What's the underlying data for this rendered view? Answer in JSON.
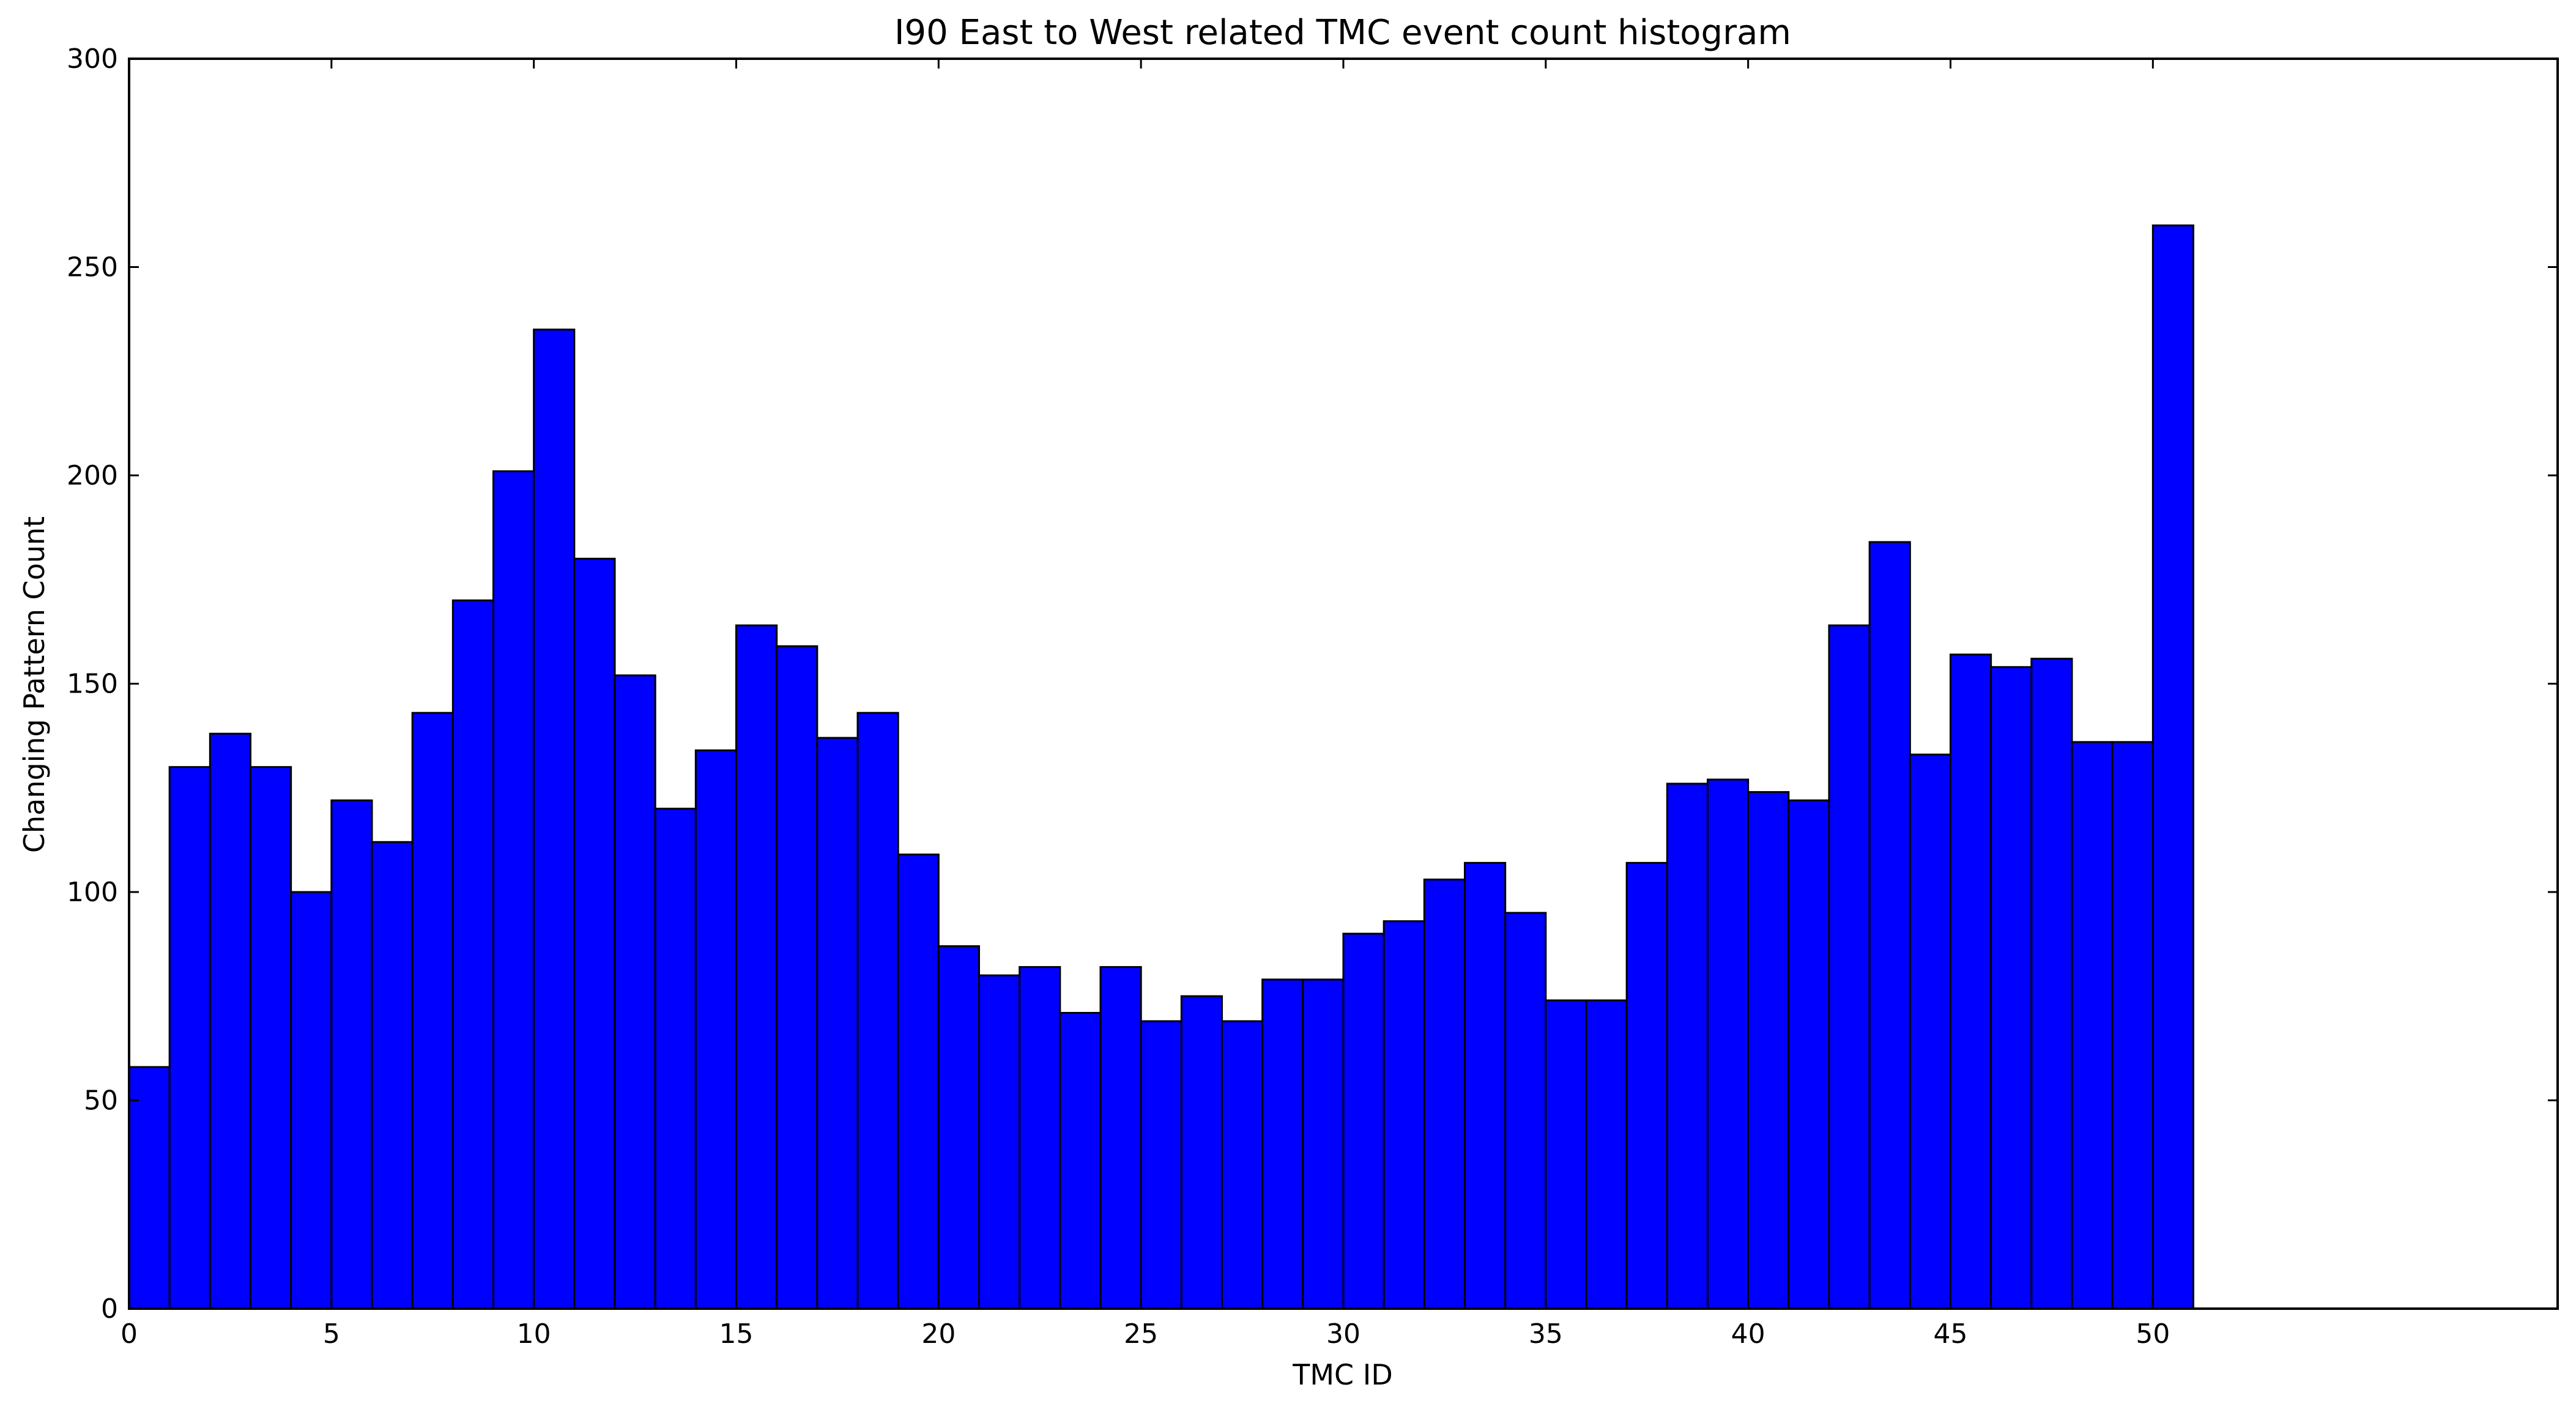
{
  "chart_data": {
    "type": "bar",
    "title": "I90 East to West related TMC event count histogram",
    "xlabel": "TMC ID",
    "ylabel": "Changing Pattern Count",
    "xlim": [
      0,
      60
    ],
    "ylim": [
      0,
      300
    ],
    "x_ticks": [
      "0",
      "5",
      "10",
      "15",
      "20",
      "25",
      "30",
      "35",
      "40",
      "45",
      "50"
    ],
    "x_tick_values": [
      0,
      5,
      10,
      15,
      20,
      25,
      30,
      35,
      40,
      45,
      50
    ],
    "y_ticks": [
      "0",
      "50",
      "100",
      "150",
      "200",
      "250",
      "300"
    ],
    "y_tick_values": [
      0,
      50,
      100,
      150,
      200,
      250,
      300
    ],
    "bin_width": 1,
    "bin_starts": [
      0,
      1,
      2,
      3,
      4,
      5,
      6,
      7,
      8,
      9,
      10,
      11,
      12,
      13,
      14,
      15,
      16,
      17,
      18,
      19,
      20,
      21,
      22,
      23,
      24,
      25,
      26,
      27,
      28,
      29,
      30,
      31,
      32,
      33,
      34,
      35,
      36,
      37,
      38,
      39,
      40,
      41,
      42,
      43,
      44,
      45,
      46,
      47,
      48,
      49,
      50
    ],
    "values": [
      58,
      130,
      138,
      130,
      100,
      122,
      112,
      143,
      170,
      201,
      235,
      180,
      152,
      120,
      134,
      164,
      159,
      137,
      143,
      109,
      87,
      80,
      82,
      71,
      82,
      69,
      75,
      69,
      79,
      79,
      90,
      93,
      103,
      107,
      95,
      74,
      74,
      107,
      126,
      127,
      124,
      122,
      164,
      184,
      133,
      157,
      154,
      156,
      136,
      136,
      260
    ],
    "bar_color": "#0000ff",
    "edge_color": "#000000",
    "grid": false,
    "legend": "none"
  }
}
